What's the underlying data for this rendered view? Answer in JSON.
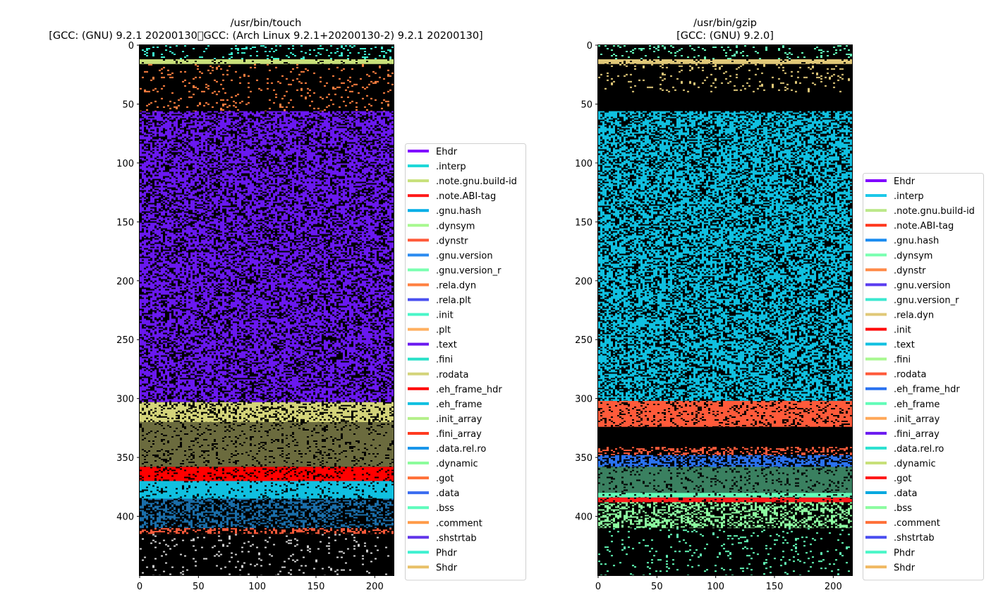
{
  "chart_data": [
    {
      "type": "heatmap",
      "title": "/usr/bin/touch\n[GCC: (GNU) 9.2.1 20200130\u0000GCC: (Arch Linux 9.2.1+20200130-2) 9.2.1 20200130]",
      "title_lines": [
        "/usr/bin/touch",
        "[GCC: (GNU) 9.2.1 20200130\u0000GCC: (Arch Linux 9.2.1+20200130-2) 9.2.1 20200130]"
      ],
      "xlim": [
        0,
        216
      ],
      "ylim": [
        450,
        0
      ],
      "xticks": [
        0,
        50,
        100,
        150,
        200
      ],
      "yticks": [
        0,
        50,
        100,
        150,
        200,
        250,
        300,
        350,
        400
      ],
      "grid": false,
      "legend_position": "center right outside",
      "legend": [
        {
          "label": "Ehdr",
          "color": "#8000ff"
        },
        {
          "label": ".interp",
          "color": "#1fd8d8"
        },
        {
          "label": ".note.gnu.build-id",
          "color": "#c8e07a"
        },
        {
          "label": ".note.ABI-tag",
          "color": "#ff1a1a"
        },
        {
          "label": ".gnu.hash",
          "color": "#00aee6"
        },
        {
          "label": ".dynsym",
          "color": "#a8f890"
        },
        {
          "label": ".dynstr",
          "color": "#ff5a3a"
        },
        {
          "label": ".gnu.version",
          "color": "#2a8af0"
        },
        {
          "label": ".gnu.version_r",
          "color": "#7affb0"
        },
        {
          "label": ".rela.dyn",
          "color": "#ff8040"
        },
        {
          "label": ".rela.plt",
          "color": "#4a50f0"
        },
        {
          "label": ".init",
          "color": "#4af6c8"
        },
        {
          "label": ".plt",
          "color": "#ffb060"
        },
        {
          "label": ".text",
          "color": "#6a18f0"
        },
        {
          "label": ".fini",
          "color": "#2ae0c8"
        },
        {
          "label": ".rodata",
          "color": "#d4d47a"
        },
        {
          "label": ".eh_frame_hdr",
          "color": "#ff0000"
        },
        {
          "label": ".eh_frame",
          "color": "#10c0e0"
        },
        {
          "label": ".init_array",
          "color": "#b4f08a"
        },
        {
          "label": ".fini_array",
          "color": "#ff3a20"
        },
        {
          "label": ".data.rel.ro",
          "color": "#1a96ea"
        },
        {
          "label": ".dynamic",
          "color": "#8cfc9c"
        },
        {
          "label": ".got",
          "color": "#ff7038"
        },
        {
          "label": ".data",
          "color": "#3a6cf0"
        },
        {
          "label": ".bss",
          "color": "#5efcbc"
        },
        {
          "label": ".comment",
          "color": "#ff9a48"
        },
        {
          "label": ".shstrtab",
          "color": "#6236ea"
        },
        {
          "label": "Phdr",
          "color": "#3cf0d0"
        },
        {
          "label": "Shdr",
          "color": "#e8c066"
        }
      ],
      "bands": [
        {
          "name": "Ehdr+Phdr",
          "y": [
            0,
            12
          ],
          "color": "#3cf0d0",
          "density": 0.12
        },
        {
          "name": ".note",
          "y": [
            12,
            16
          ],
          "color": "#c8e07a",
          "density": 0.9
        },
        {
          "name": ".dynsym/.dynstr",
          "y": [
            16,
            56
          ],
          "color": "#ff8040",
          "density": 0.08
        },
        {
          "name": ".text",
          "y": [
            56,
            303
          ],
          "color": "#6a18f0",
          "density": 0.62
        },
        {
          "name": ".rodata",
          "y": [
            303,
            320
          ],
          "color": "#d4d47a",
          "density": 0.7
        },
        {
          "name": ".rodata",
          "y": [
            320,
            358
          ],
          "color": "#6b6b3e",
          "density": 0.85
        },
        {
          "name": ".eh_frame_hdr",
          "y": [
            358,
            370
          ],
          "color": "#ff0000",
          "density": 0.85
        },
        {
          "name": ".eh_frame",
          "y": [
            370,
            385
          ],
          "color": "#10c0e0",
          "density": 0.85
        },
        {
          "name": ".data",
          "y": [
            385,
            410
          ],
          "color": "#1a6eaa",
          "density": 0.45
        },
        {
          "name": ".comment",
          "y": [
            410,
            415
          ],
          "color": "#ff5a3a",
          "density": 0.4
        },
        {
          "name": "Shdr",
          "y": [
            415,
            450
          ],
          "color": "#d0d0d0",
          "density": 0.06
        }
      ]
    },
    {
      "type": "heatmap",
      "title": "/usr/bin/gzip\n[GCC: (GNU) 9.2.0]",
      "title_lines": [
        "/usr/bin/gzip",
        "[GCC: (GNU) 9.2.0]"
      ],
      "xlim": [
        0,
        216
      ],
      "ylim": [
        450,
        0
      ],
      "xticks": [
        0,
        50,
        100,
        150,
        200
      ],
      "yticks": [
        0,
        50,
        100,
        150,
        200,
        250,
        300,
        350,
        400
      ],
      "grid": false,
      "legend_position": "center right outside",
      "legend": [
        {
          "label": "Ehdr",
          "color": "#8000ff"
        },
        {
          "label": ".interp",
          "color": "#1cc8e8"
        },
        {
          "label": ".note.gnu.build-id",
          "color": "#bce88a"
        },
        {
          "label": ".note.ABI-tag",
          "color": "#ff3a20"
        },
        {
          "label": ".gnu.hash",
          "color": "#1a8cf0"
        },
        {
          "label": ".dynsym",
          "color": "#7affb0"
        },
        {
          "label": ".dynstr",
          "color": "#ff8a48"
        },
        {
          "label": ".gnu.version",
          "color": "#5a3cf0"
        },
        {
          "label": ".gnu.version_r",
          "color": "#3ce8d0"
        },
        {
          "label": ".rela.dyn",
          "color": "#e0c878"
        },
        {
          "label": ".init",
          "color": "#ff0000"
        },
        {
          "label": ".text",
          "color": "#10c0e0"
        },
        {
          "label": ".fini",
          "color": "#a8f890"
        },
        {
          "label": ".rodata",
          "color": "#ff5a3a"
        },
        {
          "label": ".eh_frame_hdr",
          "color": "#2a72f0"
        },
        {
          "label": ".eh_frame",
          "color": "#62fcb8"
        },
        {
          "label": ".init_array",
          "color": "#ffa858"
        },
        {
          "label": ".fini_array",
          "color": "#6a18f0"
        },
        {
          "label": ".data.rel.ro",
          "color": "#2ae0d0"
        },
        {
          "label": ".dynamic",
          "color": "#c8e07a"
        },
        {
          "label": ".got",
          "color": "#ff1a1a"
        },
        {
          "label": ".data",
          "color": "#00a8e0"
        },
        {
          "label": ".bss",
          "color": "#8cfca0"
        },
        {
          "label": ".comment",
          "color": "#ff7038"
        },
        {
          "label": ".shstrtab",
          "color": "#4a4ef0"
        },
        {
          "label": "Phdr",
          "color": "#4af6c8"
        },
        {
          "label": "Shdr",
          "color": "#f0b860"
        }
      ],
      "bands": [
        {
          "name": "Ehdr+Phdr",
          "y": [
            0,
            12
          ],
          "color": "#62fcb8",
          "density": 0.12
        },
        {
          "name": ".note",
          "y": [
            12,
            16
          ],
          "color": "#e0c878",
          "density": 0.9
        },
        {
          "name": ".dynsym/.dynstr",
          "y": [
            16,
            40
          ],
          "color": "#e0c878",
          "density": 0.08
        },
        {
          "name": "gap",
          "y": [
            40,
            56
          ],
          "color": "#000000",
          "density": 0.0
        },
        {
          "name": ".text",
          "y": [
            56,
            302
          ],
          "color": "#10c0e0",
          "density": 0.6
        },
        {
          "name": ".rodata",
          "y": [
            302,
            324
          ],
          "color": "#ff5a3a",
          "density": 0.8
        },
        {
          "name": "gap",
          "y": [
            324,
            341
          ],
          "color": "#000000",
          "density": 0.0
        },
        {
          "name": ".rodata",
          "y": [
            341,
            348
          ],
          "color": "#ff5a3a",
          "density": 0.35
        },
        {
          "name": ".eh_frame_hdr",
          "y": [
            348,
            358
          ],
          "color": "#2a72f0",
          "density": 0.6
        },
        {
          "name": ".eh_frame",
          "y": [
            358,
            380
          ],
          "color": "#3a8060",
          "density": 0.85
        },
        {
          "name": ".init_array",
          "y": [
            380,
            384
          ],
          "color": "#62fcb8",
          "density": 0.9
        },
        {
          "name": ".got",
          "y": [
            384,
            388
          ],
          "color": "#ff1a1a",
          "density": 0.9
        },
        {
          "name": ".data",
          "y": [
            388,
            410
          ],
          "color": "#8cfca0",
          "density": 0.45
        },
        {
          "name": "Shdr",
          "y": [
            410,
            450
          ],
          "color": "#62fcb8",
          "density": 0.06
        }
      ]
    }
  ]
}
